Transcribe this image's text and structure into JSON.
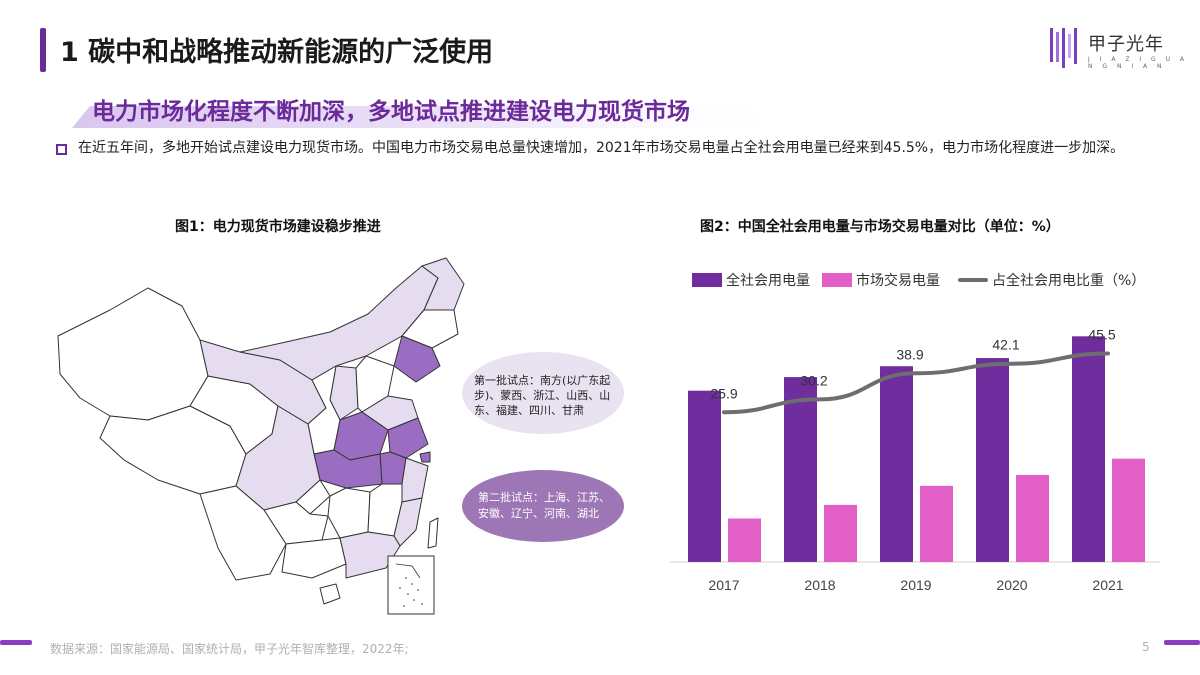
{
  "header": {
    "title": "1 碳中和战略推动新能源的广泛使用",
    "logo_text": "甲子光年",
    "logo_sub": "J I A Z I   G U A N G N I A N"
  },
  "subtitle": "电力市场化程度不断加深，多地试点推进建设电力现货市场",
  "bullet": "在近五年间，多地开始试点建设电力现货市场。中国电力市场交易电总量快速增加，2021年市场交易电量占全社会用电量已经来到45.5%，电力市场化程度进一步加深。",
  "figure1": {
    "title": "图1：电力现货市场建设稳步推进",
    "bubble1": "第一批试点：南方(以广东起步)、蒙西、浙江、山西、山东、福建、四川、甘肃",
    "bubble2": "第二批试点：上海、江苏、安徽、辽宁、河南、湖北",
    "colors": {
      "first_batch": "#e6dcf0",
      "second_batch": "#9b6dc2",
      "other": "#ffffff"
    }
  },
  "figure2": {
    "title": "图2：中国全社会用电量与市场交易电量对比（单位：%）"
  },
  "chart_data": {
    "type": "bar",
    "categories": [
      "2017",
      "2018",
      "2019",
      "2020",
      "2021"
    ],
    "series": [
      {
        "name": "全社会用电量",
        "type": "bar",
        "color": "#6f2d9e",
        "values": [
          6.3,
          6.8,
          7.2,
          7.5,
          8.3
        ]
      },
      {
        "name": "市场交易电量",
        "type": "bar",
        "color": "#e35fc8",
        "values": [
          1.6,
          2.1,
          2.8,
          3.2,
          3.8
        ]
      },
      {
        "name": "占全社会用电比重（%）",
        "type": "line",
        "color": "#6e6e6e",
        "values": [
          25.9,
          30.2,
          38.9,
          42.1,
          45.5
        ]
      }
    ],
    "line_labels": [
      "25.9",
      "30.2",
      "38.9",
      "42.1",
      "45.5"
    ],
    "legend_position": "top",
    "grid": false
  },
  "footer": {
    "source": "数据来源：国家能源局、国家统计局，甲子光年智库整理，2022年;",
    "page": "5"
  }
}
